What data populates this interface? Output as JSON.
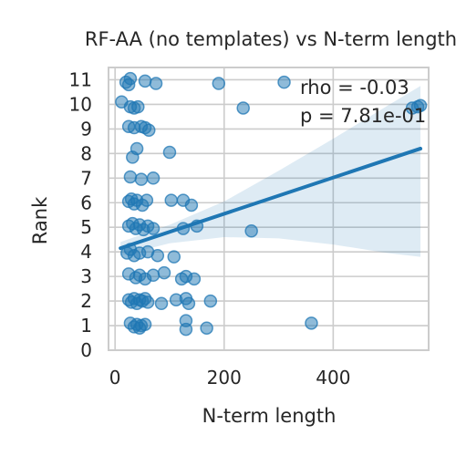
{
  "chart_data": {
    "type": "scatter",
    "title": "RF-AA (no templates) vs N-term length",
    "xlabel": "N-term length",
    "ylabel": "Rank",
    "xlim": [
      -12,
      575
    ],
    "ylim": [
      0,
      11.5
    ],
    "xticks": [
      0,
      200,
      400
    ],
    "yticks": [
      0,
      1,
      2,
      3,
      4,
      5,
      6,
      7,
      8,
      9,
      10,
      11
    ],
    "grid": true,
    "annotations": [
      "rho = -0.03",
      "p = 7.81e-01"
    ],
    "regression": {
      "x0": 10,
      "y0": 4.15,
      "x1": 560,
      "y1": 8.2
    },
    "ci_band": {
      "x": [
        10,
        100,
        200,
        300,
        400,
        500,
        560
      ],
      "lower": [
        3.85,
        4.35,
        4.6,
        4.55,
        4.3,
        3.95,
        3.8
      ],
      "upper": [
        4.4,
        5.1,
        6.05,
        7.3,
        8.6,
        9.95,
        10.75
      ]
    },
    "marker_color": "#1f77b4",
    "points": [
      {
        "x": 20,
        "y": 10.9
      },
      {
        "x": 28,
        "y": 11.05
      },
      {
        "x": 25,
        "y": 10.8
      },
      {
        "x": 55,
        "y": 10.95
      },
      {
        "x": 75,
        "y": 10.85
      },
      {
        "x": 190,
        "y": 10.85
      },
      {
        "x": 310,
        "y": 10.9
      },
      {
        "x": 12,
        "y": 10.1
      },
      {
        "x": 28,
        "y": 9.9
      },
      {
        "x": 35,
        "y": 9.85
      },
      {
        "x": 42,
        "y": 9.9
      },
      {
        "x": 235,
        "y": 9.85
      },
      {
        "x": 545,
        "y": 9.85
      },
      {
        "x": 555,
        "y": 9.9
      },
      {
        "x": 560,
        "y": 9.95
      },
      {
        "x": 25,
        "y": 9.1
      },
      {
        "x": 35,
        "y": 9.05
      },
      {
        "x": 48,
        "y": 9.1
      },
      {
        "x": 55,
        "y": 9.05
      },
      {
        "x": 62,
        "y": 8.95
      },
      {
        "x": 40,
        "y": 8.2
      },
      {
        "x": 32,
        "y": 7.85
      },
      {
        "x": 100,
        "y": 8.05
      },
      {
        "x": 28,
        "y": 7.05
      },
      {
        "x": 48,
        "y": 6.95
      },
      {
        "x": 70,
        "y": 7.0
      },
      {
        "x": 25,
        "y": 6.05
      },
      {
        "x": 30,
        "y": 6.15
      },
      {
        "x": 35,
        "y": 5.95
      },
      {
        "x": 40,
        "y": 6.1
      },
      {
        "x": 50,
        "y": 5.9
      },
      {
        "x": 58,
        "y": 6.1
      },
      {
        "x": 103,
        "y": 6.1
      },
      {
        "x": 125,
        "y": 6.1
      },
      {
        "x": 140,
        "y": 5.9
      },
      {
        "x": 25,
        "y": 5.05
      },
      {
        "x": 32,
        "y": 5.15
      },
      {
        "x": 38,
        "y": 4.95
      },
      {
        "x": 45,
        "y": 5.1
      },
      {
        "x": 52,
        "y": 4.9
      },
      {
        "x": 60,
        "y": 5.05
      },
      {
        "x": 70,
        "y": 4.95
      },
      {
        "x": 125,
        "y": 4.95
      },
      {
        "x": 150,
        "y": 5.05
      },
      {
        "x": 250,
        "y": 4.85
      },
      {
        "x": 22,
        "y": 3.95
      },
      {
        "x": 28,
        "y": 4.1
      },
      {
        "x": 35,
        "y": 3.85
      },
      {
        "x": 45,
        "y": 3.95
      },
      {
        "x": 60,
        "y": 4.0
      },
      {
        "x": 78,
        "y": 3.85
      },
      {
        "x": 108,
        "y": 3.8
      },
      {
        "x": 25,
        "y": 3.1
      },
      {
        "x": 38,
        "y": 2.95
      },
      {
        "x": 45,
        "y": 3.05
      },
      {
        "x": 55,
        "y": 2.9
      },
      {
        "x": 70,
        "y": 3.05
      },
      {
        "x": 90,
        "y": 3.15
      },
      {
        "x": 122,
        "y": 2.9
      },
      {
        "x": 130,
        "y": 3.0
      },
      {
        "x": 145,
        "y": 2.9
      },
      {
        "x": 25,
        "y": 2.05
      },
      {
        "x": 30,
        "y": 1.95
      },
      {
        "x": 35,
        "y": 2.1
      },
      {
        "x": 40,
        "y": 1.9
      },
      {
        "x": 45,
        "y": 2.05
      },
      {
        "x": 50,
        "y": 2.0
      },
      {
        "x": 55,
        "y": 2.1
      },
      {
        "x": 60,
        "y": 1.95
      },
      {
        "x": 85,
        "y": 1.9
      },
      {
        "x": 112,
        "y": 2.05
      },
      {
        "x": 130,
        "y": 2.1
      },
      {
        "x": 135,
        "y": 1.9
      },
      {
        "x": 175,
        "y": 2.0
      },
      {
        "x": 28,
        "y": 1.1
      },
      {
        "x": 35,
        "y": 0.95
      },
      {
        "x": 40,
        "y": 1.05
      },
      {
        "x": 45,
        "y": 0.9
      },
      {
        "x": 48,
        "y": 1.0
      },
      {
        "x": 55,
        "y": 1.05
      },
      {
        "x": 130,
        "y": 1.2
      },
      {
        "x": 130,
        "y": 0.85
      },
      {
        "x": 168,
        "y": 0.9
      },
      {
        "x": 360,
        "y": 1.1
      }
    ]
  }
}
